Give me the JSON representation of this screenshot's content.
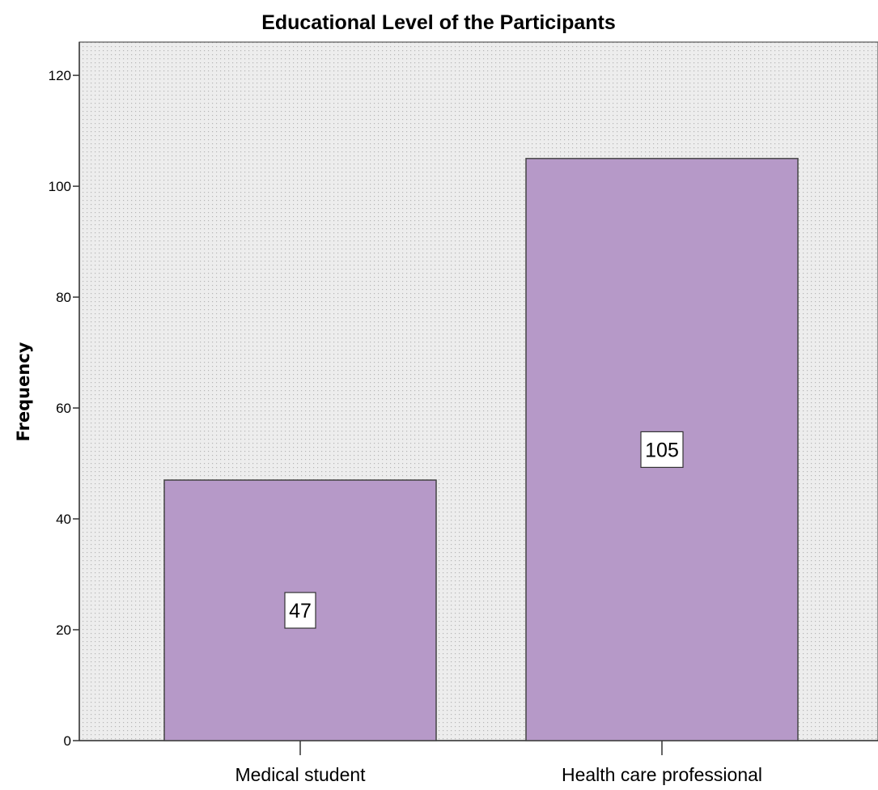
{
  "chart_data": {
    "type": "bar",
    "title": "Educational Level of the Participants",
    "xlabel": "",
    "ylabel": "Frequency",
    "categories": [
      "Medical student",
      "Health care professional"
    ],
    "values": [
      47,
      105
    ],
    "data_labels": [
      "47",
      "105"
    ],
    "ylim": [
      0,
      126
    ],
    "yticks": [
      0,
      20,
      40,
      60,
      80,
      100,
      120
    ],
    "ytick_labels": [
      "0",
      "20",
      "40",
      "60",
      "80",
      "100",
      "120"
    ],
    "grid": false,
    "legend": "none",
    "colors": {
      "bar_fill": "#b699c8",
      "bar_stroke": "#444444",
      "plot_background": "#ededed",
      "plot_pattern_dots": "#b5b5b5"
    }
  }
}
